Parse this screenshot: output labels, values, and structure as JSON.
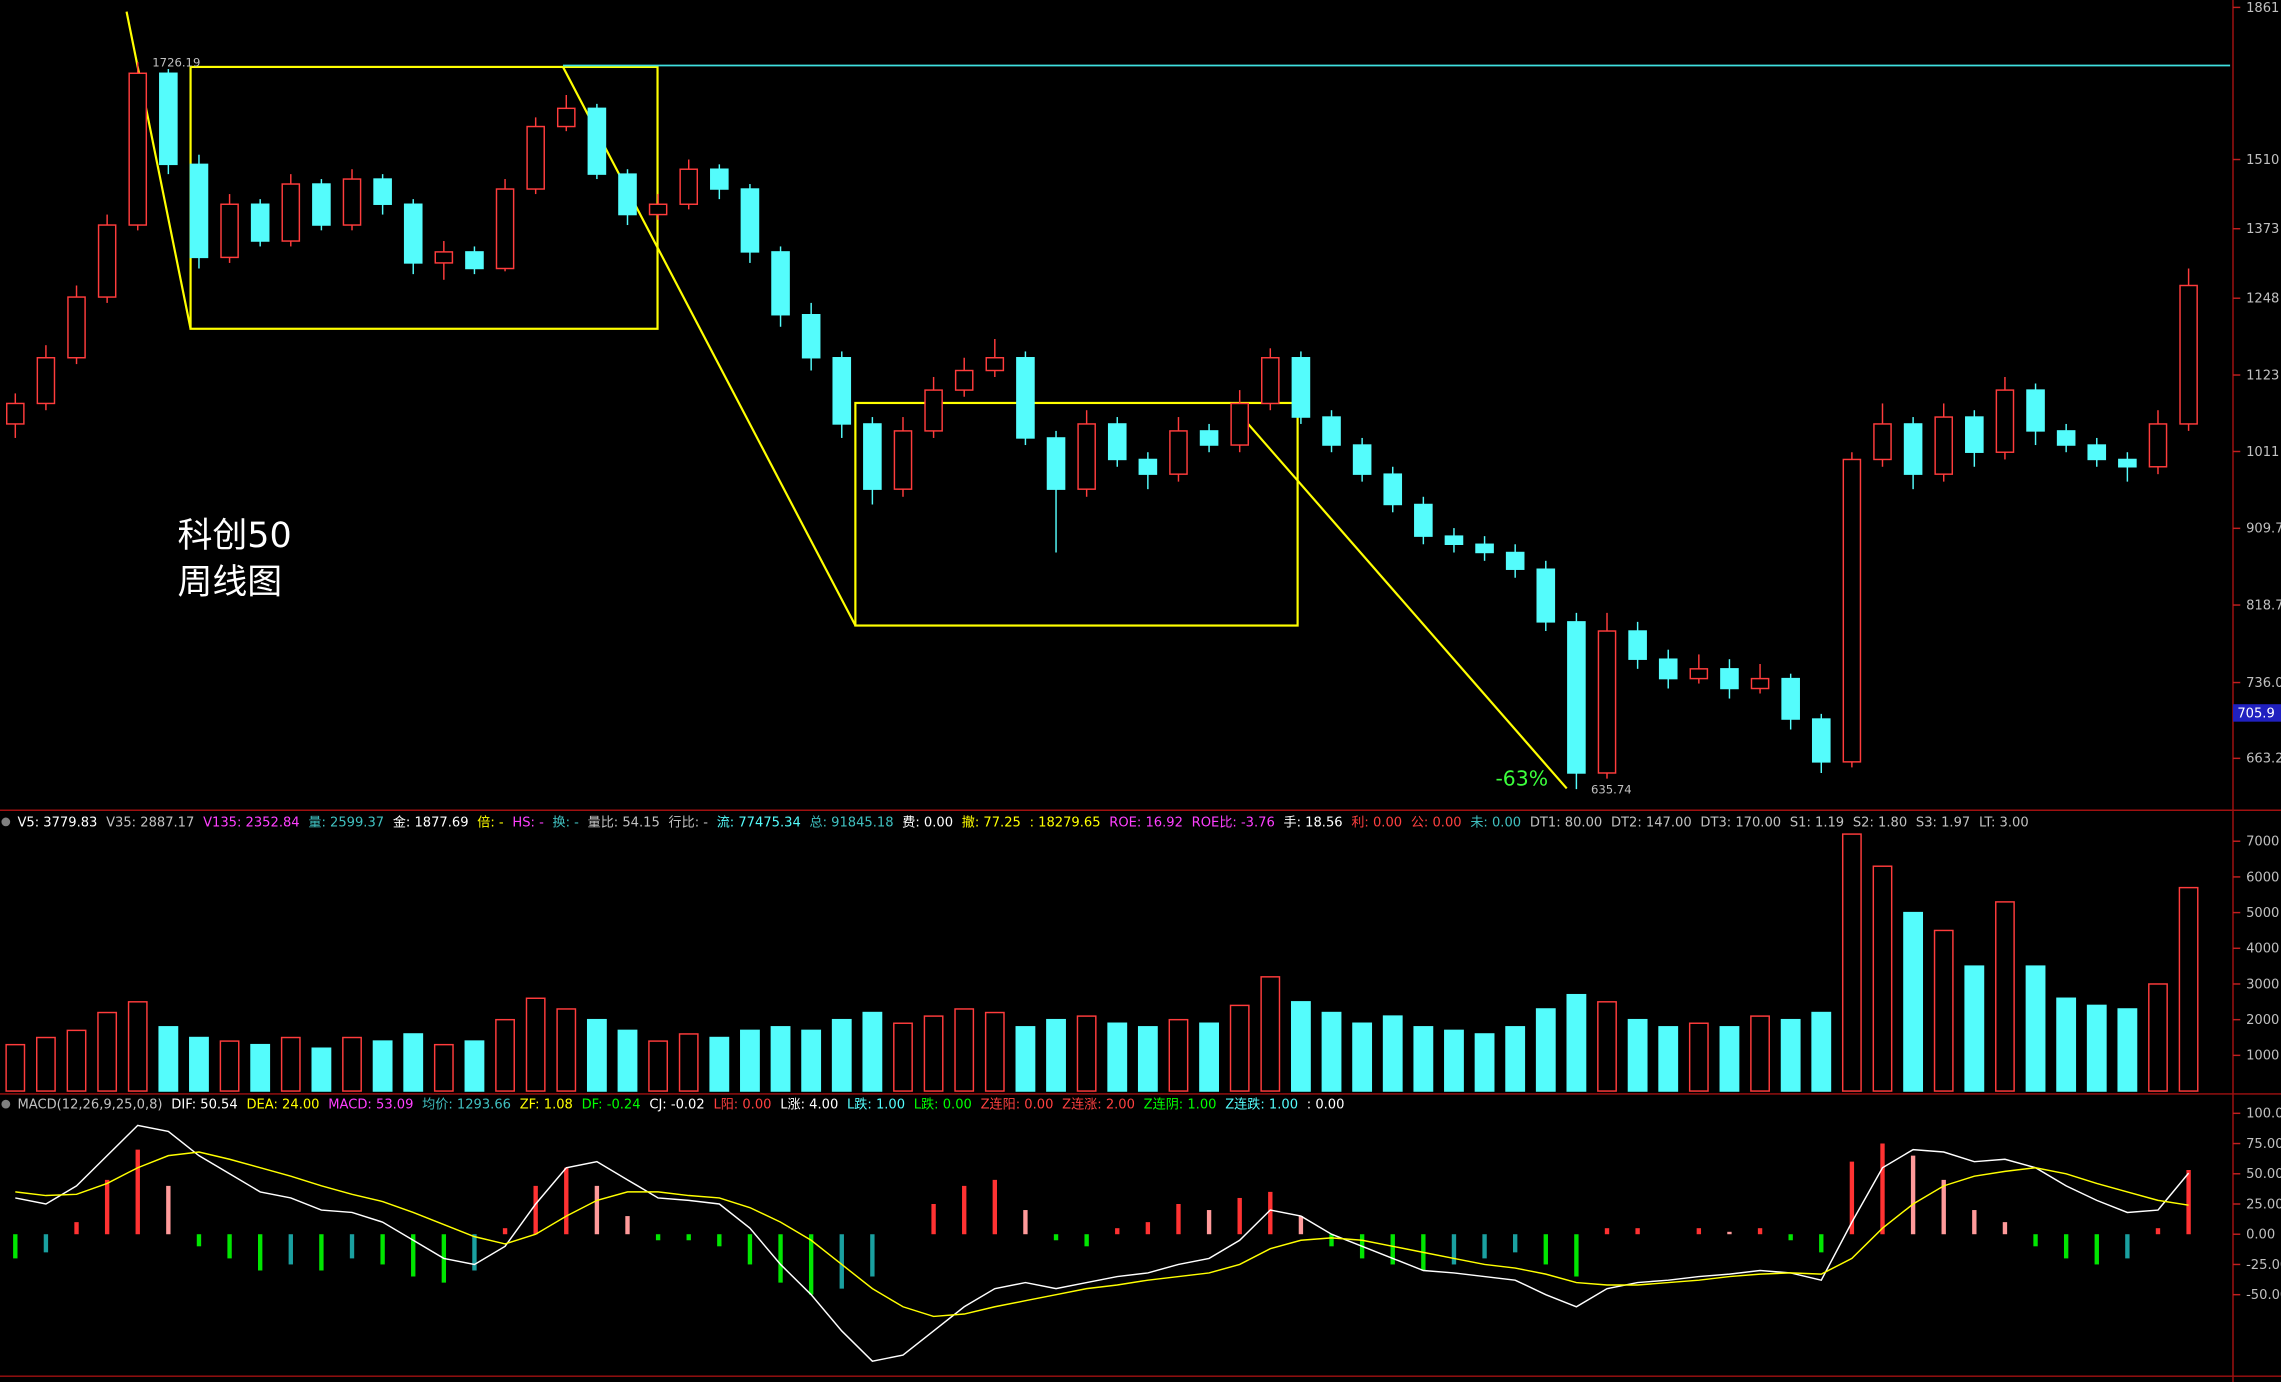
{
  "chart_data": [
    {
      "type": "candlestick",
      "annotations": [
        "科创50",
        "周线图",
        "-63%"
      ],
      "price_marker": 705.9,
      "log_scale": true,
      "ylim": [
        620,
        1880
      ],
      "yticks": [
        1861,
        1510,
        1373,
        1248,
        1123,
        1011,
        909.7,
        818.7,
        {
          "value": 736,
          "label": "736.0"
        },
        663.2
      ],
      "up_color": "#ff3c3c",
      "down_color": "#54fcfc",
      "open": [
        1050,
        1080,
        1150,
        1250,
        1380,
        1700,
        1500,
        1320,
        1420,
        1350,
        1460,
        1380,
        1470,
        1420,
        1310,
        1330,
        1300,
        1450,
        1580,
        1620,
        1480,
        1400,
        1420,
        1490,
        1450,
        1330,
        1220,
        1150,
        1050,
        960,
        1040,
        1100,
        1130,
        1150,
        1030,
        960,
        1050,
        1000,
        980,
        1040,
        1020,
        1080,
        1150,
        1060,
        1020,
        980,
        940,
        900,
        890,
        880,
        860,
        800,
        650,
        790,
        760,
        740,
        750,
        730,
        740,
        700,
        660,
        1000,
        1050,
        980,
        1060,
        1010,
        1100,
        1040,
        1020,
        1000,
        990,
        1050
      ],
      "high": [
        1095,
        1170,
        1270,
        1400,
        1726.19,
        1710,
        1520,
        1440,
        1430,
        1480,
        1470,
        1490,
        1480,
        1430,
        1350,
        1340,
        1470,
        1600,
        1650,
        1630,
        1490,
        1440,
        1510,
        1500,
        1460,
        1340,
        1240,
        1160,
        1060,
        1060,
        1120,
        1150,
        1180,
        1160,
        1040,
        1070,
        1060,
        1010,
        1060,
        1050,
        1100,
        1165,
        1160,
        1070,
        1030,
        990,
        950,
        910,
        900,
        890,
        870,
        810,
        810,
        800,
        770,
        765,
        760,
        755,
        745,
        705,
        1010,
        1080,
        1060,
        1080,
        1070,
        1120,
        1110,
        1050,
        1030,
        1010,
        1070,
        1300
      ],
      "low": [
        1030,
        1070,
        1140,
        1240,
        1370,
        1480,
        1300,
        1310,
        1340,
        1340,
        1370,
        1370,
        1400,
        1290,
        1280,
        1290,
        1295,
        1440,
        1570,
        1470,
        1380,
        1390,
        1410,
        1430,
        1310,
        1200,
        1130,
        1030,
        940,
        950,
        1030,
        1090,
        1120,
        1020,
        880,
        950,
        990,
        960,
        970,
        1010,
        1010,
        1070,
        1050,
        1010,
        970,
        930,
        890,
        880,
        870,
        850,
        790,
        635.74,
        645,
        750,
        730,
        735,
        720,
        725,
        690,
        650,
        655,
        990,
        960,
        970,
        990,
        1000,
        1020,
        1010,
        990,
        970,
        980,
        1040
      ],
      "close": [
        1080,
        1150,
        1250,
        1380,
        1700,
        1500,
        1320,
        1420,
        1350,
        1460,
        1380,
        1470,
        1420,
        1310,
        1330,
        1300,
        1450,
        1580,
        1620,
        1480,
        1400,
        1420,
        1490,
        1450,
        1330,
        1220,
        1150,
        1050,
        960,
        1040,
        1100,
        1130,
        1150,
        1030,
        960,
        1050,
        1000,
        980,
        1040,
        1020,
        1080,
        1150,
        1060,
        1020,
        980,
        940,
        900,
        890,
        880,
        860,
        800,
        650,
        790,
        760,
        740,
        750,
        730,
        740,
        700,
        660,
        1000,
        1050,
        980,
        1060,
        1010,
        1100,
        1040,
        1020,
        1000,
        990,
        1050,
        1270
      ]
    },
    {
      "type": "bar",
      "legend_items": [
        {
          "text": "V5: 3779.83",
          "color": "#ffffff"
        },
        {
          "text": "V35: 2887.17",
          "color": "#c0c0c0"
        },
        {
          "text": "V135: 2352.84",
          "color": "#ff40ff"
        },
        {
          "text": "量: 2599.37",
          "color": "#40c0c0"
        },
        {
          "text": "金: 1877.69",
          "color": "#ffffff"
        },
        {
          "text": "倍: -",
          "color": "#ffff00"
        },
        {
          "text": "HS: -",
          "color": "#ff40ff"
        },
        {
          "text": "换: -",
          "color": "#40c0c0"
        },
        {
          "text": "量比: 54.15",
          "color": "#c0c0c0"
        },
        {
          "text": "行比: -",
          "color": "#c0c0c0"
        },
        {
          "text": "流: 77475.34",
          "color": "#54fcfc"
        },
        {
          "text": "总: 91845.18",
          "color": "#40c0c0"
        },
        {
          "text": "费: 0.00",
          "color": "#ffffff"
        },
        {
          "text": "撤: 77.25",
          "color": "#ffff00"
        },
        {
          "text": ": 18279.65",
          "color": "#ffff00"
        },
        {
          "text": "ROE: 16.92",
          "color": "#ff40ff"
        },
        {
          "text": "ROE比: -3.76",
          "color": "#ff40ff"
        },
        {
          "text": "手: 18.56",
          "color": "#ffffff"
        },
        {
          "text": "利: 0.00",
          "color": "#ff4040"
        },
        {
          "text": "公: 0.00",
          "color": "#ff4040"
        },
        {
          "text": "未: 0.00",
          "color": "#40c0c0"
        },
        {
          "text": "DT1: 80.00",
          "color": "#c0c0c0"
        },
        {
          "text": "DT2: 147.00",
          "color": "#c0c0c0"
        },
        {
          "text": "DT3: 170.00",
          "color": "#c0c0c0"
        },
        {
          "text": "S1: 1.19",
          "color": "#c0c0c0"
        },
        {
          "text": "S2: 1.80",
          "color": "#c0c0c0"
        },
        {
          "text": "S3: 1.97",
          "color": "#c0c0c0"
        },
        {
          "text": "LT: 3.00",
          "color": "#c0c0c0"
        }
      ],
      "values": [
        1300,
        1500,
        1700,
        2200,
        2500,
        1800,
        1500,
        1400,
        1300,
        1500,
        1200,
        1500,
        1400,
        1600,
        1300,
        1400,
        2000,
        2600,
        2300,
        2000,
        1700,
        1400,
        1600,
        1500,
        1700,
        1800,
        1700,
        2000,
        2200,
        1900,
        2100,
        2300,
        2200,
        1800,
        2000,
        2100,
        1900,
        1800,
        2000,
        1900,
        2400,
        3200,
        2500,
        2200,
        1900,
        2100,
        1800,
        1700,
        1600,
        1800,
        2300,
        2700,
        2500,
        2000,
        1800,
        1900,
        1800,
        2100,
        2000,
        2200,
        7200,
        6300,
        5000,
        4500,
        3500,
        5300,
        3500,
        2600,
        2400,
        2300,
        3000,
        5700
      ],
      "ylim": [
        0,
        7500
      ],
      "yticks": [
        1000,
        2000,
        3000,
        4000,
        5000,
        6000,
        7000
      ]
    },
    {
      "type": "macd",
      "legend_items": [
        {
          "text": "MACD(12,26,9,25,0,8)",
          "color": "#c0c0c0"
        },
        {
          "text": "DIF: 50.54",
          "color": "#ffffff"
        },
        {
          "text": "DEA: 24.00",
          "color": "#ffff00"
        },
        {
          "text": "MACD: 53.09",
          "color": "#ff40ff"
        },
        {
          "text": "均价: 1293.66",
          "color": "#40c0c0"
        },
        {
          "text": "ZF: 1.08",
          "color": "#ffff00"
        },
        {
          "text": "DF: -0.24",
          "color": "#00ff00"
        },
        {
          "text": "CJ: -0.02",
          "color": "#ffffff"
        },
        {
          "text": "L阳: 0.00",
          "color": "#ff4040"
        },
        {
          "text": "L涨: 4.00",
          "color": "#ffffff"
        },
        {
          "text": "L跌: 1.00",
          "color": "#54fcfc"
        },
        {
          "text": "L跌: 0.00",
          "color": "#00ff00"
        },
        {
          "text": "Z连阳: 0.00",
          "color": "#ff4040"
        },
        {
          "text": "Z连涨: 2.00",
          "color": "#ff4040"
        },
        {
          "text": "Z连阴: 1.00",
          "color": "#00ff00"
        },
        {
          "text": "Z连跌: 1.00",
          "color": "#54fcfc"
        },
        {
          "text": ": 0.00",
          "color": "#ffffff"
        }
      ],
      "histogram": [
        -20,
        -15,
        10,
        45,
        70,
        40,
        -10,
        -20,
        -30,
        -25,
        -30,
        -20,
        -25,
        -35,
        -40,
        -30,
        5,
        40,
        55,
        40,
        15,
        -5,
        -5,
        -10,
        -25,
        -40,
        -50,
        -45,
        -35,
        0,
        25,
        40,
        45,
        20,
        -5,
        -10,
        5,
        10,
        25,
        20,
        30,
        35,
        15,
        -10,
        -20,
        -25,
        -30,
        -25,
        -20,
        -15,
        -25,
        -35,
        5,
        5,
        0,
        5,
        2,
        5,
        -5,
        -15,
        60,
        75,
        65,
        45,
        20,
        10,
        -10,
        -20,
        -25,
        -20,
        5,
        53.09
      ],
      "series": [
        {
          "color": "#ffffff",
          "values": [
            30,
            25,
            40,
            65,
            90,
            85,
            65,
            50,
            35,
            30,
            20,
            18,
            10,
            -5,
            -20,
            -25,
            -10,
            25,
            55,
            60,
            45,
            30,
            28,
            25,
            5,
            -25,
            -50,
            -80,
            -105,
            -100,
            -80,
            -60,
            -45,
            -40,
            -45,
            -40,
            -35,
            -32,
            -25,
            -20,
            -5,
            20,
            15,
            0,
            -10,
            -20,
            -30,
            -32,
            -35,
            -38,
            -50,
            -60,
            -45,
            -40,
            -38,
            -35,
            -33,
            -30,
            -32,
            -38,
            10,
            55,
            70,
            68,
            60,
            62,
            55,
            40,
            28,
            18,
            20,
            50.54
          ]
        },
        {
          "color": "#ffff00",
          "values": [
            35,
            32,
            33,
            42,
            55,
            65,
            68,
            62,
            55,
            48,
            40,
            33,
            27,
            18,
            8,
            -2,
            -8,
            0,
            15,
            28,
            35,
            35,
            32,
            30,
            22,
            10,
            -5,
            -25,
            -45,
            -60,
            -68,
            -66,
            -60,
            -55,
            -50,
            -45,
            -42,
            -38,
            -35,
            -32,
            -25,
            -12,
            -5,
            -3,
            -5,
            -10,
            -15,
            -20,
            -25,
            -28,
            -33,
            -40,
            -42,
            -42,
            -40,
            -38,
            -35,
            -33,
            -32,
            -33,
            -20,
            5,
            25,
            40,
            48,
            52,
            55,
            50,
            42,
            35,
            28,
            24
          ]
        }
      ],
      "ylim": [
        -115,
        110
      ],
      "yticks": [
        {
          "value": 100,
          "label": "100.0"
        },
        {
          "value": 75,
          "label": "75.00"
        },
        {
          "value": 50,
          "label": "50.00"
        },
        {
          "value": 25,
          "label": "25.00"
        },
        {
          "value": 0,
          "label": "0.00"
        },
        {
          "value": -25,
          "label": "-25.00"
        },
        {
          "value": -50,
          "label": "-50.00"
        }
      ]
    }
  ]
}
